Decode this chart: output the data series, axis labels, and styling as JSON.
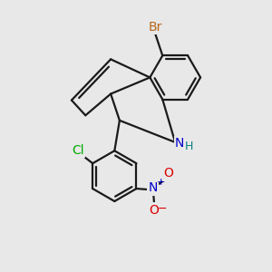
{
  "bg": "#e8e8e8",
  "bc": "#1a1a1a",
  "bw": 1.6,
  "atom_colors": {
    "Br": "#b8651a",
    "N": "#0000cc",
    "H": "#008080",
    "Cl": "#00aa00",
    "O": "#dd0000"
  },
  "figsize": [
    3.0,
    3.0
  ],
  "dpi": 100
}
